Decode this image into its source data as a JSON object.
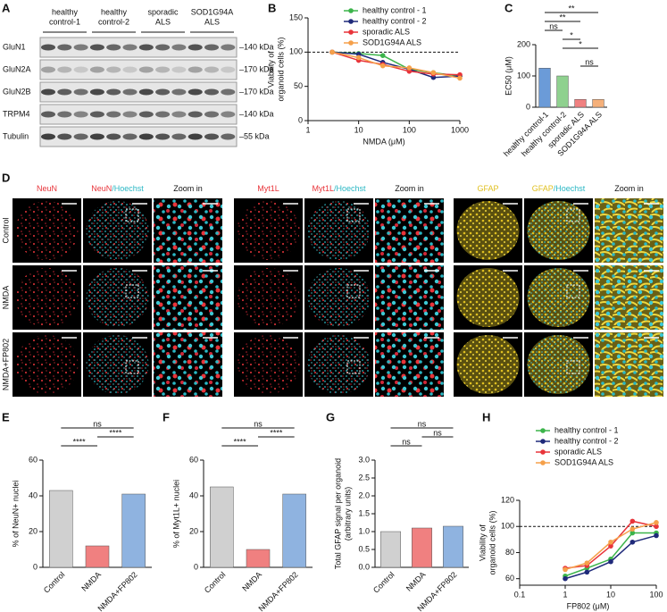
{
  "blot": {
    "panel": "A",
    "groups": [
      [
        "healthy",
        "control-1"
      ],
      [
        "healthy",
        "control-2"
      ],
      [
        "sporadic",
        "ALS"
      ],
      [
        "SOD1G94A",
        "ALS"
      ]
    ],
    "rows": [
      {
        "protein": "GluN1",
        "marker": "–140 kDa"
      },
      {
        "protein": "GluN2A",
        "marker": "–170 kDa"
      },
      {
        "protein": "GluN2B",
        "marker": "–170 kDa"
      },
      {
        "protein": "TRPM4",
        "marker": "–140 kDa"
      },
      {
        "protein": "Tubulin",
        "marker": "–55 kDa"
      }
    ]
  },
  "microscopy": {
    "panel": "D",
    "rows": [
      "Control",
      "NMDA",
      "NMDA+FP802"
    ],
    "columns": [
      {
        "parts": [
          "NeuN"
        ],
        "colors": [
          "#e8343a"
        ]
      },
      {
        "parts": [
          "NeuN",
          "/Hoechst"
        ],
        "colors": [
          "#e8343a",
          "#2ab7c4"
        ]
      },
      {
        "parts": [
          "Zoom in"
        ],
        "colors": [
          "#111111"
        ]
      },
      {
        "parts": [
          "Myt1L"
        ],
        "colors": [
          "#e8343a"
        ]
      },
      {
        "parts": [
          "Myt1L",
          "/Hoechst"
        ],
        "colors": [
          "#e8343a",
          "#2ab7c4"
        ]
      },
      {
        "parts": [
          "Zoom in"
        ],
        "colors": [
          "#111111"
        ]
      },
      {
        "parts": [
          "GFAP"
        ],
        "colors": [
          "#e0c020"
        ]
      },
      {
        "parts": [
          "GFAP",
          "/Hoechst"
        ],
        "colors": [
          "#e0c020",
          "#2ab7c4"
        ]
      },
      {
        "parts": [
          "Zoom in"
        ],
        "colors": [
          "#111111"
        ]
      }
    ]
  },
  "chart_data": [
    {
      "type": "line",
      "panel": "B",
      "ylabel": [
        "Viability of",
        "organoid cells (%)"
      ],
      "xlabel": "NMDA (μM)",
      "xscale": "log",
      "xlim": [
        1,
        1000
      ],
      "xticks": [
        1,
        10,
        100,
        1000
      ],
      "ylim": [
        0,
        150
      ],
      "yticks": [
        0,
        50,
        100,
        150
      ],
      "reference_line": 100,
      "x": [
        3,
        10,
        30,
        100,
        300,
        1000
      ],
      "series": [
        {
          "name": "healthy control - 1",
          "color": "#3cb44b",
          "values": [
            100,
            98,
            95,
            75,
            70,
            65
          ]
        },
        {
          "name": "healthy control - 2",
          "color": "#1f2a7a",
          "values": [
            100,
            97,
            85,
            75,
            63,
            65
          ]
        },
        {
          "name": "sporadic ALS",
          "color": "#e8343a",
          "values": [
            100,
            88,
            82,
            72,
            68,
            67
          ]
        },
        {
          "name": "SOD1G94A ALS",
          "color": "#f5a04a",
          "values": [
            100,
            92,
            80,
            77,
            70,
            62
          ]
        }
      ]
    },
    {
      "type": "bar",
      "panel": "C",
      "ylabel": [
        "EC50 (μM)"
      ],
      "ylim": [
        0,
        200
      ],
      "yticks": [
        0,
        100,
        200
      ],
      "categories": [
        "healthy control-1",
        "healthy control-2",
        "sporadic ALS",
        "SOD1G94A ALS"
      ],
      "values": [
        125,
        100,
        25,
        25
      ],
      "colors": [
        "#6b9bd8",
        "#8fd18f",
        "#f08080",
        "#f5b07a"
      ],
      "annotations": [
        "**",
        "**",
        "ns",
        "*",
        "*",
        "ns"
      ]
    },
    {
      "type": "bar",
      "panel": "E",
      "ylabel": [
        "% of NeuN+ nuclei"
      ],
      "ylim": [
        0,
        60
      ],
      "yticks": [
        0,
        20,
        40,
        60
      ],
      "categories": [
        "Control",
        "NMDA",
        "NMDA+FP802"
      ],
      "values": [
        43,
        12,
        41
      ],
      "colors": [
        "#d0d0d0",
        "#f08080",
        "#8fb3e0"
      ],
      "annotations": [
        "ns",
        "****",
        "****"
      ]
    },
    {
      "type": "bar",
      "panel": "F",
      "ylabel": [
        "% of Myt1L+ nuclei"
      ],
      "ylim": [
        0,
        60
      ],
      "yticks": [
        0,
        20,
        40,
        60
      ],
      "categories": [
        "Control",
        "NMDA",
        "NMDA+FP802"
      ],
      "values": [
        45,
        10,
        41
      ],
      "colors": [
        "#d0d0d0",
        "#f08080",
        "#8fb3e0"
      ],
      "annotations": [
        "ns",
        "****",
        "****"
      ]
    },
    {
      "type": "bar",
      "panel": "G",
      "ylabel": [
        "Total GFAP signal per organoid",
        "(arbitrary units)"
      ],
      "ylim": [
        0,
        3
      ],
      "yticks": [
        {
          "value": 0,
          "label": "0.0"
        },
        {
          "value": 0.5,
          "label": "0.5"
        },
        {
          "value": 1,
          "label": "1.0"
        },
        {
          "value": 1.5,
          "label": "1.5"
        },
        {
          "value": 2,
          "label": "2.0"
        },
        {
          "value": 2.5,
          "label": "2.5"
        },
        {
          "value": 3,
          "label": "3.0"
        }
      ],
      "categories": [
        "Control",
        "NMDA",
        "NMDA+FP802"
      ],
      "values": [
        1.0,
        1.1,
        1.15
      ],
      "colors": [
        "#d0d0d0",
        "#f08080",
        "#8fb3e0"
      ],
      "annotations": [
        "ns",
        "ns",
        "ns"
      ]
    },
    {
      "type": "line",
      "panel": "H",
      "ylabel": [
        "Viability of",
        "organoid cells (%)"
      ],
      "xlabel": "FP802 (μM)",
      "xscale": "log",
      "xlim": [
        0.1,
        100
      ],
      "xticks": [
        0.1,
        1,
        10,
        100
      ],
      "ylim": [
        55,
        120
      ],
      "yticks": [
        60,
        80,
        100,
        120
      ],
      "reference_line": 100,
      "x": [
        1,
        3,
        10,
        30,
        100
      ],
      "series": [
        {
          "name": "healthy control - 1",
          "color": "#3cb44b",
          "values": [
            62,
            68,
            75,
            95,
            95
          ]
        },
        {
          "name": "healthy control - 2",
          "color": "#1f2a7a",
          "values": [
            60,
            65,
            73,
            88,
            93
          ]
        },
        {
          "name": "sporadic ALS",
          "color": "#e8343a",
          "values": [
            68,
            70,
            85,
            104,
            100
          ]
        },
        {
          "name": "SOD1G94A ALS",
          "color": "#f5a04a",
          "values": [
            67,
            72,
            88,
            98,
            103
          ]
        }
      ]
    }
  ]
}
